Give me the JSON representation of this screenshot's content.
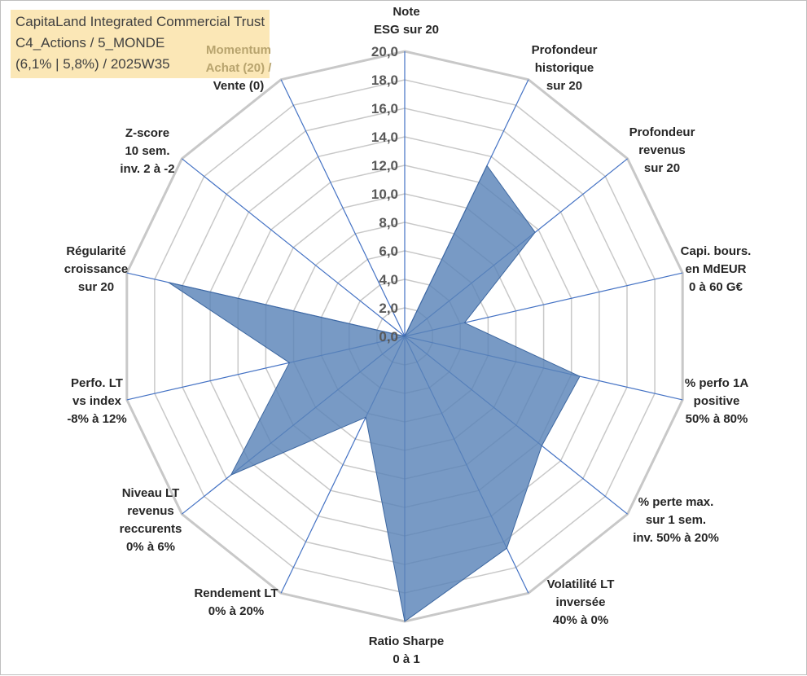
{
  "title": {
    "line1": "CapitaLand Integrated Commercial Trust",
    "line2": "C4_Actions / 5_MONDE",
    "line3": "(6,1% | 5,8%) / 2025W35"
  },
  "chart_data": {
    "type": "radar",
    "r_range": [
      0,
      20
    ],
    "r_step": 2,
    "tick_labels": [
      "0,0",
      "2,0",
      "4,0",
      "6,0",
      "8,0",
      "10,0",
      "12,0",
      "14,0",
      "16,0",
      "18,0",
      "20,0"
    ],
    "grid": true,
    "fill_color": "#5a84b8",
    "grid_color": "#c8c8c8",
    "spoke_color": "#4472c4",
    "axes": [
      {
        "lines": [
          "Note",
          "ESG sur 20"
        ],
        "value": 0
      },
      {
        "lines": [
          "Profondeur",
          "historique",
          "sur 20"
        ],
        "value": 13.3
      },
      {
        "lines": [
          "Profondeur",
          "revenus",
          "sur 20"
        ],
        "value": 11.7
      },
      {
        "lines": [
          "Capi. bours.",
          "en MdEUR",
          "0 à 60 G€"
        ],
        "value": 4.3
      },
      {
        "lines": [
          "% perfo 1A",
          "positive",
          "50% à 80%"
        ],
        "value": 12.6
      },
      {
        "lines": [
          "% perte max.",
          "sur 1 sem.",
          "inv. 50% à 20%"
        ],
        "value": 12.3
      },
      {
        "lines": [
          "Volatilité LT",
          "inversée",
          "40% à 0%"
        ],
        "value": 16.5
      },
      {
        "lines": [
          "Ratio Sharpe",
          "0 à 1"
        ],
        "value": 20
      },
      {
        "lines": [
          "Rendement LT",
          "0% à 20%"
        ],
        "value": 6.3
      },
      {
        "lines": [
          "Niveau LT",
          "revenus",
          "reccurents",
          "0% à 6%"
        ],
        "value": 15.6
      },
      {
        "lines": [
          "Perfo. LT",
          "vs index",
          "-8% à 12%"
        ],
        "value": 8.3
      },
      {
        "lines": [
          "Régularité",
          "croissance",
          "sur 20"
        ],
        "value": 17.0
      },
      {
        "lines": [
          "Z-score",
          "10 sem.",
          "inv. 2 à -2"
        ],
        "value": 0
      },
      {
        "lines": [
          "Momentum",
          "Achat (20) /",
          "Vente (0)"
        ],
        "value": 0
      }
    ]
  }
}
